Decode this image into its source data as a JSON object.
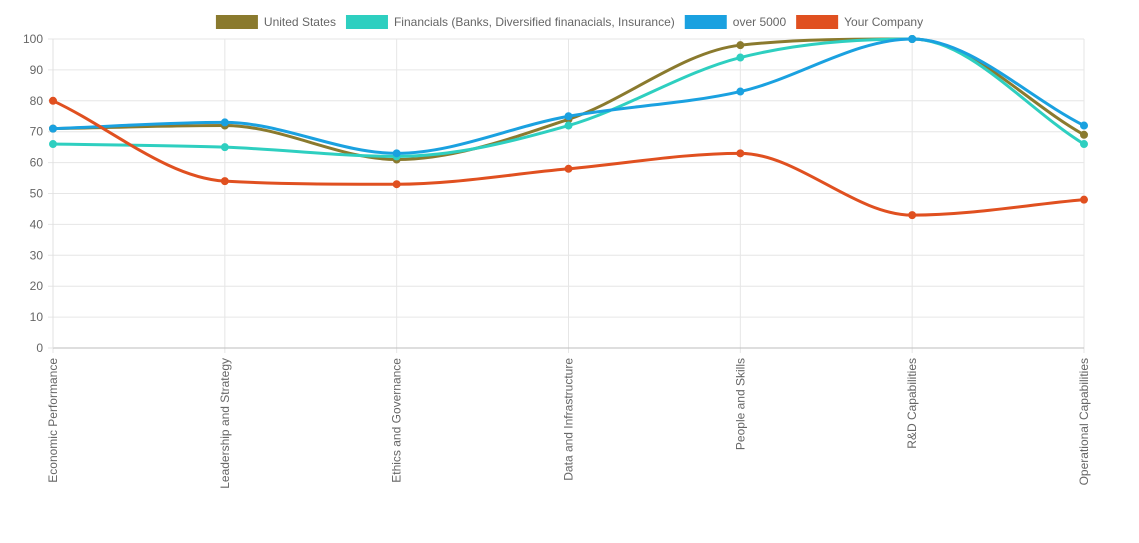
{
  "chart_data": {
    "type": "line",
    "categories": [
      "Economic Performance",
      "Leadership and Strategy",
      "Ethics and Governance",
      "Data and Infrastructure",
      "People and Skills",
      "R&D Capabilities",
      "Operational Capabilities"
    ],
    "series": [
      {
        "name": "United States",
        "color": "#8a7a2e",
        "values": [
          71,
          72,
          61,
          74,
          98,
          100,
          69
        ]
      },
      {
        "name": "Financials (Banks, Diversified finanacials, Insurance)",
        "color": "#2ecfc0",
        "values": [
          66,
          65,
          62,
          72,
          94,
          100,
          66
        ]
      },
      {
        "name": "over 5000",
        "color": "#1aa1e0",
        "values": [
          71,
          73,
          63,
          75,
          83,
          100,
          72
        ]
      },
      {
        "name": "Your Company",
        "color": "#e05020",
        "values": [
          80,
          54,
          53,
          58,
          63,
          43,
          48
        ]
      }
    ],
    "ylim": [
      0,
      100
    ],
    "yticks": [
      "0",
      "10",
      "20",
      "30",
      "40",
      "50",
      "60",
      "70",
      "80",
      "90",
      "100"
    ],
    "grid": true,
    "legend_position": "top-center"
  }
}
